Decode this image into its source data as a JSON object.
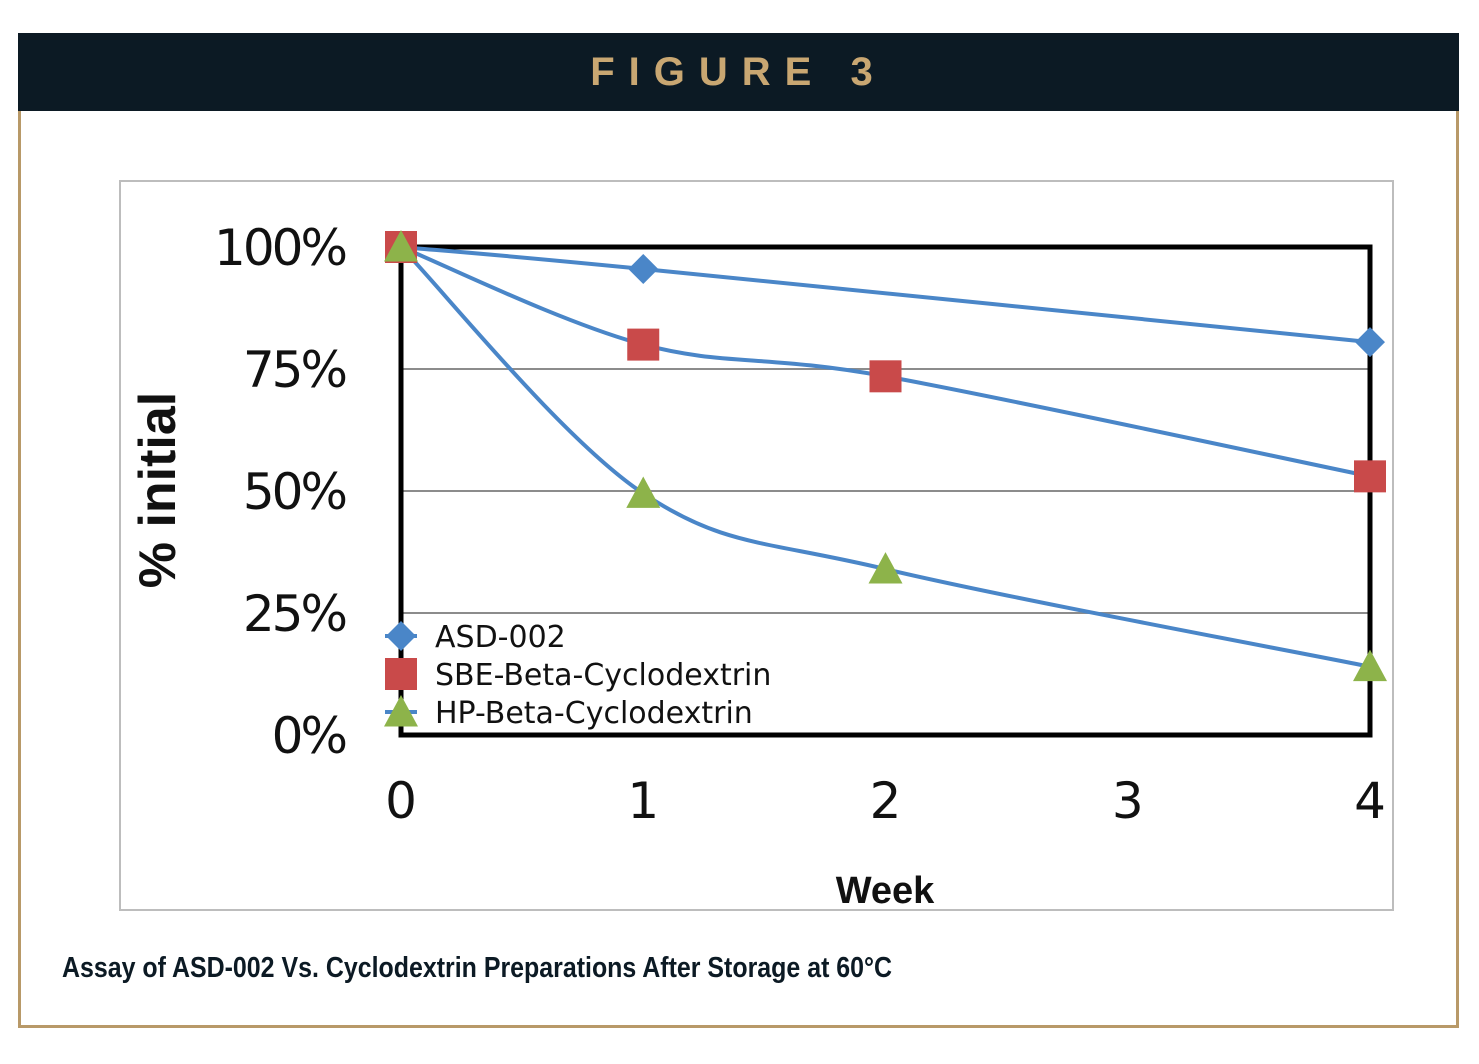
{
  "header": {
    "title": "FIGURE 3"
  },
  "caption": "Assay of ASD-002 Vs. Cyclodextrin Preparations After Storage at 60°C",
  "chart_data": {
    "type": "line",
    "xlabel": "Week",
    "ylabel": "% initial",
    "x_ticks": [
      "0",
      "1",
      "2",
      "3",
      "4"
    ],
    "y_ticks": [
      "0%",
      "25%",
      "50%",
      "75%",
      "100%"
    ],
    "xlim": [
      0,
      4
    ],
    "ylim": [
      0,
      100
    ],
    "grid": "horizontal",
    "legend_position": "bottom-left",
    "series": [
      {
        "name": "ASD-002",
        "marker": "diamond",
        "marker_color": "#4a86c8",
        "line_color": "#4a86c8",
        "x": [
          0,
          1,
          4
        ],
        "y": [
          100,
          95.5,
          80.5
        ]
      },
      {
        "name": "SBE-Beta-Cyclodextrin",
        "marker": "square",
        "marker_color": "#c94a4a",
        "line_color": "#4a86c8",
        "x": [
          0,
          1,
          2,
          4
        ],
        "y": [
          100,
          80,
          73.5,
          53
        ]
      },
      {
        "name": "HP-Beta-Cyclodextrin",
        "marker": "triangle",
        "marker_color": "#8db34a",
        "line_color": "#4a86c8",
        "x": [
          0,
          1,
          2,
          4
        ],
        "y": [
          100,
          49.5,
          34,
          14
        ]
      }
    ]
  }
}
